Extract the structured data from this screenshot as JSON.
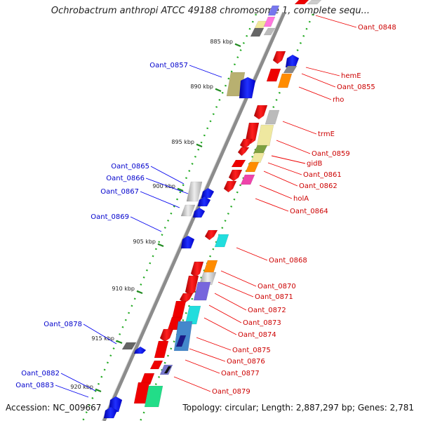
{
  "title": "Ochrobactrum anthropi ATCC 49188 chromosome 1, complete sequ...",
  "accession": "Accession: NC_009667",
  "summary": "Topology: circular; Length: 2,887,297 bp; Genes: 2,781",
  "colors": {
    "forward": "#0000ee",
    "reverse": "#ee0000",
    "axis": "#888888",
    "ticks": "#228b22"
  },
  "ticks": [
    {
      "label": "885 kbp"
    },
    {
      "label": "890 kbp"
    },
    {
      "label": "895 kbp"
    },
    {
      "label": "900 kbp"
    },
    {
      "label": "905 kbp"
    },
    {
      "label": "910 kbp"
    },
    {
      "label": "915 kbp"
    },
    {
      "label": "920 kbp"
    }
  ],
  "gene_labels_forward": [
    {
      "name": "Oant_0857"
    },
    {
      "name": "Oant_0865"
    },
    {
      "name": "Oant_0866"
    },
    {
      "name": "Oant_0867"
    },
    {
      "name": "Oant_0869"
    },
    {
      "name": "Oant_0878"
    },
    {
      "name": "Oant_0882"
    },
    {
      "name": "Oant_0883"
    }
  ],
  "gene_labels_reverse": [
    {
      "name": "Oant_0848"
    },
    {
      "name": "hemE"
    },
    {
      "name": "Oant_0855"
    },
    {
      "name": "rho"
    },
    {
      "name": "trmE"
    },
    {
      "name": "Oant_0859"
    },
    {
      "name": "gidB"
    },
    {
      "name": "Oant_0861"
    },
    {
      "name": "Oant_0862"
    },
    {
      "name": "holA"
    },
    {
      "name": "Oant_0864"
    },
    {
      "name": "Oant_0868"
    },
    {
      "name": "Oant_0870"
    },
    {
      "name": "Oant_0871"
    },
    {
      "name": "Oant_0872"
    },
    {
      "name": "Oant_0873"
    },
    {
      "name": "Oant_0874"
    },
    {
      "name": "Oant_0875"
    },
    {
      "name": "Oant_0876"
    },
    {
      "name": "Oant_0877"
    },
    {
      "name": "Oant_0879"
    }
  ]
}
